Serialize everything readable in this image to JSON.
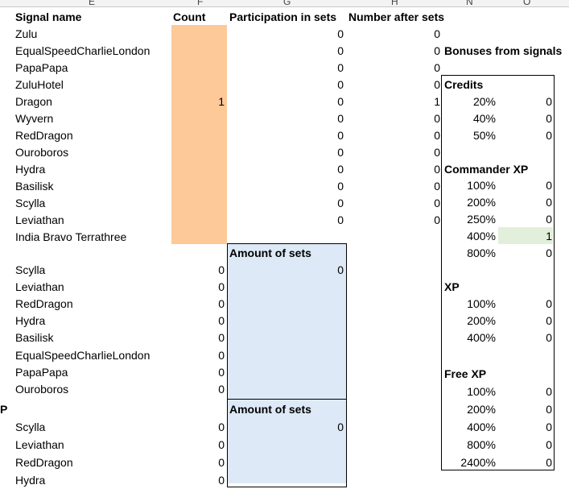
{
  "column_letters": [
    "E",
    "F",
    "G",
    "H",
    "N",
    "O"
  ],
  "headers": {
    "signal_name": "Signal name",
    "count": "Count",
    "participation": "Participation in sets",
    "number_after": "Number after sets"
  },
  "signals": [
    {
      "name": "Zulu",
      "count": "",
      "participation": "0",
      "after": "0"
    },
    {
      "name": "EqualSpeedCharlieLondon",
      "count": "",
      "participation": "0",
      "after": "0"
    },
    {
      "name": "PapaPapa",
      "count": "",
      "participation": "0",
      "after": "0"
    },
    {
      "name": "ZuluHotel",
      "count": "",
      "participation": "0",
      "after": "0"
    },
    {
      "name": "Dragon",
      "count": "1",
      "participation": "0",
      "after": "1"
    },
    {
      "name": "Wyvern",
      "count": "",
      "participation": "0",
      "after": "0"
    },
    {
      "name": "RedDragon",
      "count": "",
      "participation": "0",
      "after": "0"
    },
    {
      "name": "Ouroboros",
      "count": "",
      "participation": "0",
      "after": "0"
    },
    {
      "name": "Hydra",
      "count": "",
      "participation": "0",
      "after": "0"
    },
    {
      "name": "Basilisk",
      "count": "",
      "participation": "0",
      "after": "0"
    },
    {
      "name": "Scylla",
      "count": "",
      "participation": "0",
      "after": "0"
    },
    {
      "name": "Leviathan",
      "count": "",
      "participation": "0",
      "after": "0"
    },
    {
      "name": "India Bravo Terrathree",
      "count": "",
      "participation": "",
      "after": ""
    }
  ],
  "set1": {
    "header": "Amount of sets",
    "amount": "0",
    "items": [
      {
        "name": "Scylla",
        "value": "0"
      },
      {
        "name": "Leviathan",
        "value": "0"
      },
      {
        "name": "RedDragon",
        "value": "0"
      },
      {
        "name": "Hydra",
        "value": "0"
      },
      {
        "name": "Basilisk",
        "value": "0"
      },
      {
        "name": "EqualSpeedCharlieLondon",
        "value": "0"
      },
      {
        "name": "PapaPapa",
        "value": "0"
      },
      {
        "name": "Ouroboros",
        "value": "0"
      }
    ]
  },
  "set2": {
    "left_label": "P",
    "header": "Amount of sets",
    "amount": "0",
    "items": [
      {
        "name": "Scylla",
        "value": "0"
      },
      {
        "name": "Leviathan",
        "value": "0"
      },
      {
        "name": "RedDragon",
        "value": "0"
      },
      {
        "name": "Hydra",
        "value": "0"
      }
    ]
  },
  "bonuses": {
    "title": "Bonuses from signals",
    "credits": {
      "label": "Credits",
      "rows": [
        {
          "pct": "20%",
          "v": "0"
        },
        {
          "pct": "40%",
          "v": "0"
        },
        {
          "pct": "50%",
          "v": "0"
        }
      ]
    },
    "commander_xp": {
      "label": "Commander XP",
      "rows": [
        {
          "pct": "100%",
          "v": "0"
        },
        {
          "pct": "200%",
          "v": "0"
        },
        {
          "pct": "250%",
          "v": "0"
        },
        {
          "pct": "400%",
          "v": "1"
        },
        {
          "pct": "800%",
          "v": "0"
        }
      ]
    },
    "xp": {
      "label": "XP",
      "rows": [
        {
          "pct": "100%",
          "v": "0"
        },
        {
          "pct": "200%",
          "v": "0"
        },
        {
          "pct": "400%",
          "v": "0"
        }
      ]
    },
    "free_xp": {
      "label": "Free XP",
      "rows": [
        {
          "pct": "100%",
          "v": "0"
        },
        {
          "pct": "200%",
          "v": "0"
        },
        {
          "pct": "400%",
          "v": "0"
        },
        {
          "pct": "800%",
          "v": "0"
        },
        {
          "pct": "2400%",
          "v": "0"
        }
      ]
    }
  }
}
